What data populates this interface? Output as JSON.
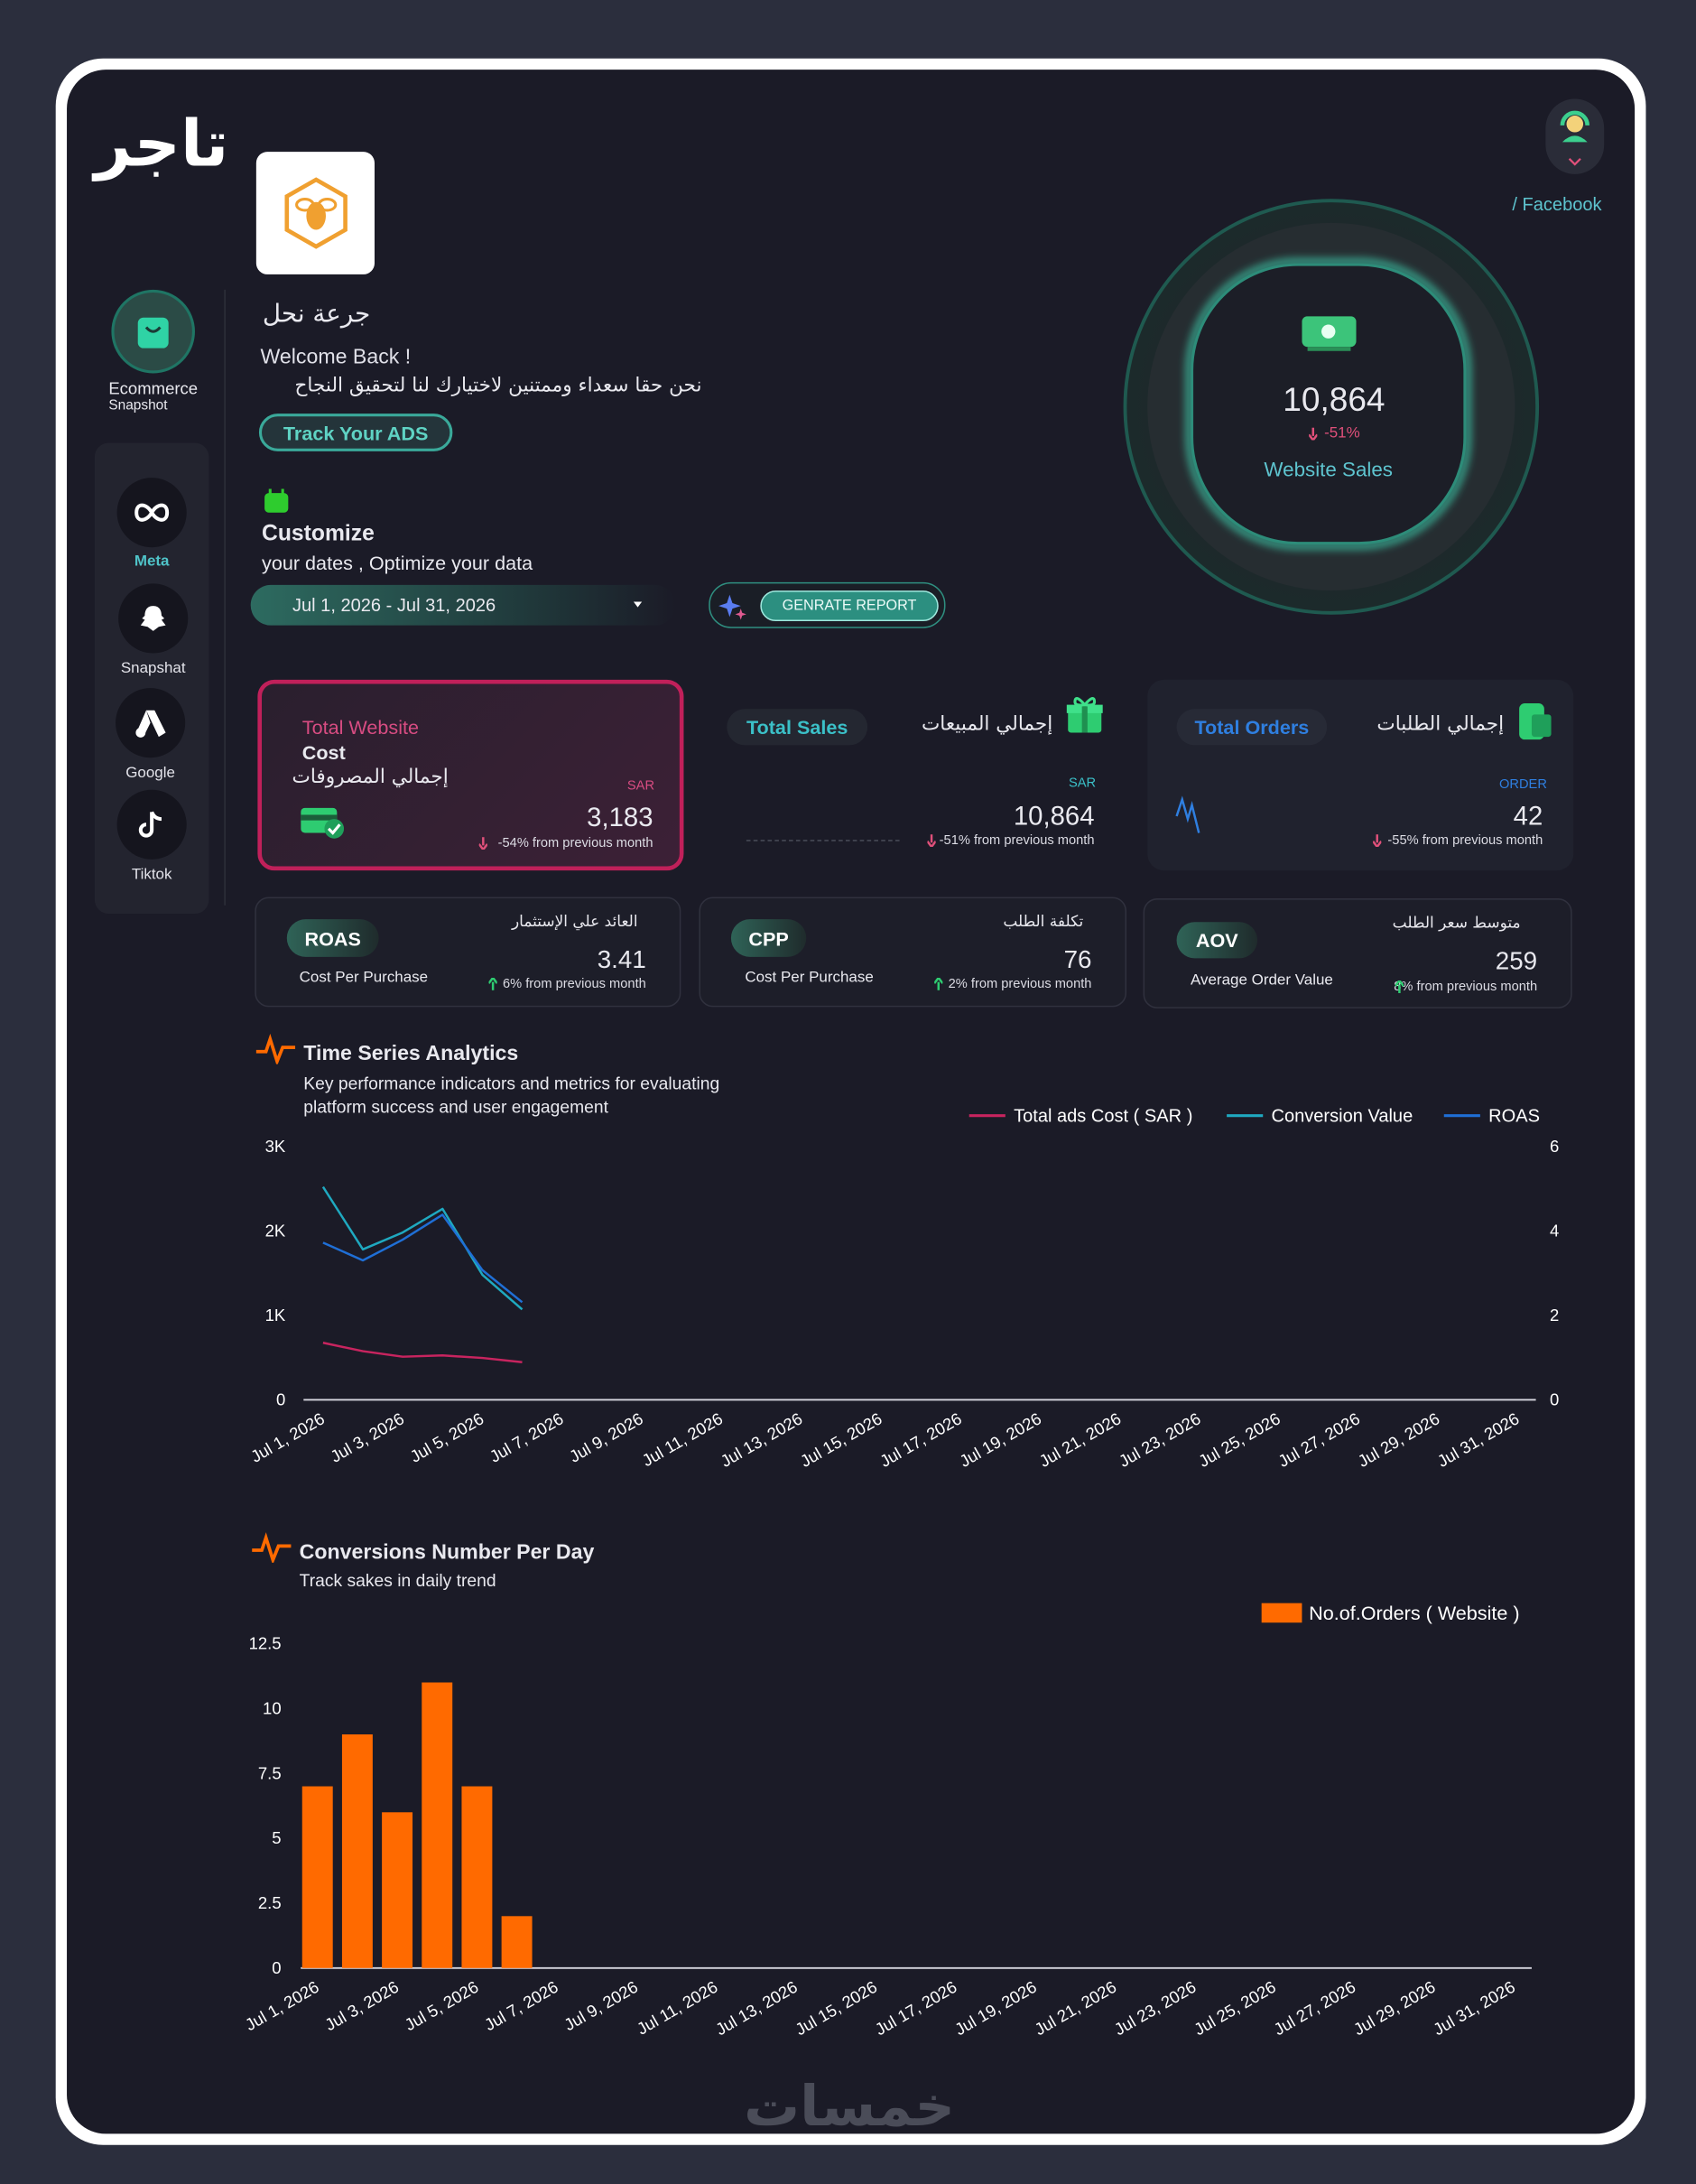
{
  "sidebar": {
    "logo": "تاجر",
    "ecommerce": "Ecommerce",
    "snapshot": "Snapshot",
    "nav": [
      "Meta",
      "Snapshat",
      "Google",
      "Tiktok"
    ]
  },
  "header": {
    "brand": "جرعة نحل",
    "welcome": "Welcome Back !",
    "message": "نحن حقا سعداء وممتنين لاختيارك لنا لتحقيق النجاح",
    "track_button": "Track Your ADS",
    "customize_title": "Customize",
    "customize_subtitle": "your dates , Optimize your data",
    "date_range": "Jul 1, 2026 - Jul 31, 2026",
    "generate_button": "GENRATE REPORT",
    "source": "/ Facebook"
  },
  "website_sales": {
    "value": "10,864",
    "change": "-51%",
    "label": "Website Sales"
  },
  "cards": [
    {
      "title": "Total Website",
      "title_2": "Cost",
      "title_ar": "إجمالي المصروفات",
      "unit": "SAR",
      "value": "3,183",
      "change": "-54% from previous month"
    },
    {
      "title": "Total Sales",
      "title_ar": "إجمالي المبيعات",
      "unit": "SAR",
      "value": "10,864",
      "change": "-51% from previous month"
    },
    {
      "title": "Total Orders",
      "title_ar": "إجمالي الطلبات",
      "unit": "ORDER",
      "value": "42",
      "change": "-55% from previous month"
    }
  ],
  "metrics": [
    {
      "badge": "ROAS",
      "subtitle": "Cost Per Purchase",
      "title_ar": "العائد علي الإستثمار",
      "value": "3.41",
      "change": "6% from previous month"
    },
    {
      "badge": "CPP",
      "subtitle": "Cost Per Purchase",
      "title_ar": "تكلفة الطلب",
      "value": "76",
      "change": "2% from previous month"
    },
    {
      "badge": "AOV",
      "subtitle": "Average Order Value",
      "title_ar": "متوسط سعر الطلب",
      "value": "259",
      "change": "8% from previous month"
    }
  ],
  "chart_data": [
    {
      "type": "line",
      "title": "Time Series Analytics",
      "subtitle": "Key performance indicators and metrics for evaluating platform success and user engagement",
      "categories": [
        "Jul 1, 2026",
        null,
        "Jul 3, 2026",
        null,
        "Jul 5, 2026",
        null,
        "Jul 7, 2026",
        null,
        "Jul 9, 2026",
        null,
        "Jul 11, 2026",
        null,
        "Jul 13, 2026",
        null,
        "Jul 15, 2026",
        null,
        "Jul 17, 2026",
        null,
        "Jul 19, 2026",
        null,
        "Jul 21, 2026",
        null,
        "Jul 23, 2026",
        null,
        "Jul 25, 2026",
        null,
        "Jul 27, 2026",
        null,
        "Jul 29, 2026",
        null,
        "Jul 31, 2026"
      ],
      "series": [
        {
          "name": "Total ads Cost ( SAR )",
          "color": "#c8245f",
          "values": [
            675,
            575,
            510,
            525,
            495,
            445,
            null,
            null,
            null,
            null,
            null,
            null,
            null,
            null,
            null,
            null,
            null,
            null,
            null,
            null,
            null,
            null,
            null,
            null,
            null,
            null,
            null,
            null,
            null,
            null,
            null
          ]
        },
        {
          "name": "Conversion Value",
          "color": "#1fa9c0",
          "values": [
            2520,
            1780,
            1980,
            2260,
            1480,
            1070,
            null,
            null,
            null,
            null,
            null,
            null,
            null,
            null,
            null,
            null,
            null,
            null,
            null,
            null,
            null,
            null,
            null,
            null,
            null,
            null,
            null,
            null,
            null,
            null,
            null
          ]
        },
        {
          "name": "ROAS",
          "color": "#1f6fd6",
          "axis": "y2",
          "values": [
            3.72,
            3.3,
            3.79,
            4.38,
            3.07,
            2.31,
            null,
            null,
            null,
            null,
            null,
            null,
            null,
            null,
            null,
            null,
            null,
            null,
            null,
            null,
            null,
            null,
            null,
            null,
            null,
            null,
            null,
            null,
            null,
            null,
            null
          ]
        }
      ],
      "ylim": [
        0,
        3000
      ],
      "yticks": [
        0,
        {
          "value": 1000,
          "label": "1K"
        },
        {
          "value": 2000,
          "label": "2K"
        },
        {
          "value": 3000,
          "label": "3K"
        }
      ],
      "y2lim": [
        0,
        6
      ],
      "y2ticks": [
        0,
        2,
        4,
        6
      ],
      "grid": false
    },
    {
      "type": "bar",
      "title": "Conversions Number Per Day",
      "subtitle": "Track sakes in daily trend",
      "categories": [
        "Jul 1, 2026",
        null,
        "Jul 3, 2026",
        null,
        "Jul 5, 2026",
        null,
        "Jul 7, 2026",
        null,
        "Jul 9, 2026",
        null,
        "Jul 11, 2026",
        null,
        "Jul 13, 2026",
        null,
        "Jul 15, 2026",
        null,
        "Jul 17, 2026",
        null,
        "Jul 19, 2026",
        null,
        "Jul 21, 2026",
        null,
        "Jul 23, 2026",
        null,
        "Jul 25, 2026",
        null,
        "Jul 27, 2026",
        null,
        "Jul 29, 2026",
        null,
        "Jul 31, 2026"
      ],
      "series": [
        {
          "name": "No.of.Orders ( Website )",
          "color": "#ff6a00",
          "values": [
            7,
            9,
            6,
            11,
            7,
            2,
            null,
            null,
            null,
            null,
            null,
            null,
            null,
            null,
            null,
            null,
            null,
            null,
            null,
            null,
            null,
            null,
            null,
            null,
            null,
            null,
            null,
            null,
            null,
            null,
            null
          ]
        }
      ],
      "ylim": [
        0,
        12.5
      ],
      "yticks": [
        0,
        2.5,
        5,
        7.5,
        10,
        12.5
      ],
      "grid": false
    }
  ],
  "watermark": "خمسات"
}
